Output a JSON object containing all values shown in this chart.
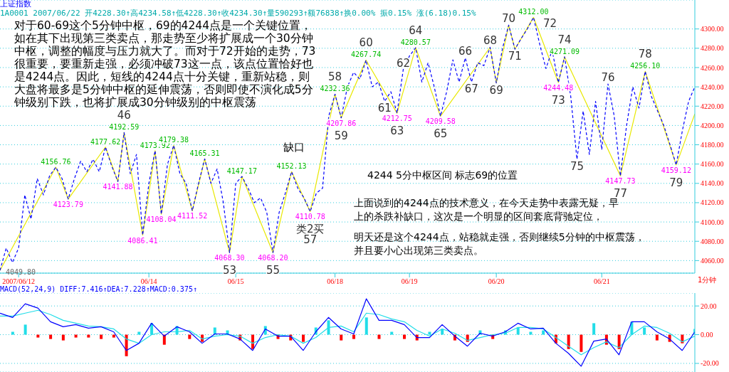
{
  "chart_data": [
    {
      "type": "line",
      "title": "上证指数",
      "subtitle": "1A0001 2007/06/22 开4228.30↑高4234.58↑低4228.30↑收4234.30↑量590293↑额76838↑换0.00% 振0.15% 涨(6.18)0.15%",
      "xlabel": "1分钟",
      "categories": [
        null,
        null,
        null,
        "2007/06/12",
        null,
        null,
        null,
        null,
        null,
        null,
        null,
        null,
        null,
        null,
        null,
        null,
        null,
        null,
        null,
        null,
        null,
        null,
        null,
        null,
        "06/14",
        null,
        null,
        null,
        null,
        null,
        null,
        null,
        null,
        null,
        null,
        null,
        null,
        null,
        "06/15",
        null,
        null,
        null,
        null,
        null,
        null,
        null,
        null,
        null,
        null,
        null,
        null,
        null,
        null,
        null,
        "06/18",
        null,
        null,
        null,
        null,
        null,
        null,
        null,
        null,
        null,
        null,
        null,
        "06/19",
        null,
        null,
        null,
        null,
        null,
        null,
        null,
        null,
        null,
        null,
        null,
        null,
        null,
        "06/20",
        null,
        null,
        null,
        null,
        null,
        null,
        null,
        null,
        null,
        null,
        null,
        null,
        null,
        null,
        null,
        null,
        "06/21",
        null,
        null,
        null,
        null,
        null,
        null,
        null,
        null,
        null,
        null,
        null,
        null,
        null,
        null,
        null
      ],
      "ylim": [
        4047,
        4330
      ],
      "yticks": [
        {
          "value": 4060,
          "label": "4060.00"
        },
        {
          "value": 4080,
          "label": "4080.00"
        },
        {
          "value": 4100,
          "label": "4100.00"
        },
        {
          "value": 4120,
          "label": "4120.00"
        },
        {
          "value": 4140,
          "label": "4140.00"
        },
        {
          "value": 4160,
          "label": "4160.00"
        },
        {
          "value": 4180,
          "label": "4180.00"
        },
        {
          "value": 4200,
          "label": "4200.00"
        },
        {
          "value": 4220,
          "label": "4220.00"
        },
        {
          "value": 4240,
          "label": "4240.00"
        },
        {
          "value": 4260,
          "label": "4260.00"
        },
        {
          "value": 4280,
          "label": "4280.00"
        },
        {
          "value": 4300,
          "label": "4300.00"
        }
      ],
      "grid": "y",
      "series": [
        {
          "color": "#0000ff",
          "line_style": "dashed",
          "values": [
            4049.8,
            4073,
            4058,
            4073,
            4128,
            4103,
            4145,
            4128,
            4148,
            4156.76,
            4145,
            4123.79,
            4145,
            4163,
            4152,
            4165,
            4152,
            4177.62,
            4158,
            4141.88,
            4192.59,
            4150,
            4170,
            4086.41,
            4140,
            4173.92,
            4108.04,
            4160,
            4179.38,
            4150,
            4140,
            4111.52,
            4140,
            4165.31,
            4140,
            4155,
            4120,
            4068.3,
            4140,
            4147.17,
            4135,
            4120,
            4125,
            4110,
            4068.2,
            4110,
            4130,
            4152.13,
            4135,
            4125,
            4110.78,
            4130,
            4135,
            4210,
            4232.36,
            4207.86,
            4240,
            4255,
            4248,
            4267.74,
            4240,
            4245,
            4225,
            4235,
            4212.75,
            4258,
            4272,
            4280.57,
            4245,
            4265,
            4240,
            4209.58,
            4235,
            4268,
            4245,
            4270,
            4245,
            4265,
            4262,
            4281,
            4244,
            4280,
            4304,
            4279,
            4290,
            4300,
            4312.0,
            4284,
            4259,
            4278,
            4244.48,
            4271.09,
            4230,
            4165,
            4215,
            4170,
            4225,
            4175,
            4243,
            4210,
            4147.73,
            4200,
            4240,
            4218,
            4256.1,
            4230,
            4215,
            4200,
            4180,
            4159.12,
            4195,
            4225,
            4240
          ]
        },
        {
          "color": "#e8e800",
          "line_style": "solid",
          "values": [
            4049.8,
            null,
            null,
            null,
            null,
            null,
            null,
            null,
            null,
            4156.76,
            null,
            4123.79,
            null,
            null,
            null,
            null,
            null,
            4177.62,
            null,
            4141.88,
            4192.59,
            null,
            null,
            4086.41,
            null,
            4173.92,
            4108.04,
            null,
            4179.38,
            null,
            null,
            4111.52,
            null,
            4165.31,
            null,
            null,
            null,
            4068.3,
            null,
            4147.17,
            null,
            null,
            null,
            null,
            4068.2,
            null,
            null,
            4152.13,
            null,
            null,
            4110.78,
            null,
            null,
            null,
            4232.36,
            4207.86,
            null,
            null,
            null,
            4267.74,
            null,
            null,
            null,
            null,
            4212.75,
            null,
            null,
            4280.57,
            null,
            null,
            null,
            4209.58,
            null,
            null,
            null,
            null,
            null,
            null,
            null,
            4281,
            4244,
            null,
            4304,
            4279,
            null,
            null,
            4312.0,
            null,
            null,
            null,
            4244.48,
            4271.09,
            null,
            null,
            null,
            null,
            null,
            null,
            null,
            null,
            4147.73,
            null,
            null,
            null,
            4256.1,
            null,
            null,
            null,
            null,
            4159.12,
            null,
            null,
            4212
          ]
        }
      ],
      "annotations": [
        "对于60-69这个5分钟中枢，69的4244点是一个关键位置，如在其下出现第三类卖点，那走势至少将扩展成一个30分钟中枢，调整的幅度与压力就大了。而对于72开始的走势，73很重要，要重新走强，必须冲破73这一点，该点位置恰好也是4244点。因此，短线的4244点十分关键，重新站稳，则大盘将最多是5分钟中枢的延伸震荡，否则即使不演化成5分钟级别下跌，也将扩展成30分钟级别的中枢震荡",
        "缺口",
        "4244 5分中枢区间 标志69的位置",
        "上面说到的4244点的技术意义，在今天走势中表露无疑，早上的杀跌补缺口，这次是一个明显的区间套底背驰定位，",
        "明天还是这个4244点，站稳就走强，否则继续5分钟的中枢震荡，并且要小心出现第三类卖点。",
        "4049.80",
        "72",
        {
          "text": "4156.76",
          "y": 4156.76
        },
        {
          "text": "4123.79",
          "y": 4123.79
        },
        {
          "text": "4177.62",
          "y": 4177.62
        },
        {
          "text": "4141.88",
          "y": 4141.88
        },
        {
          "text": "4192.59",
          "y": 4192.59
        },
        {
          "text": "46",
          "y": 4192.59
        },
        {
          "text": "4086.41",
          "y": 4086.41
        },
        {
          "text": "4173.92",
          "y": 4173.92
        },
        {
          "text": "4108.04",
          "y": 4108.04
        },
        {
          "text": "4179.38",
          "y": 4179.38
        },
        {
          "text": "4111.52",
          "y": 4111.52
        },
        {
          "text": "4165.31",
          "y": 4165.31
        },
        {
          "text": "4068.30",
          "y": 4068.3
        },
        {
          "text": "53",
          "y": 4068.3
        },
        {
          "text": "4147.17",
          "y": 4147.17
        },
        {
          "text": "4068.20",
          "y": 4068.2
        },
        {
          "text": "55",
          "y": 4068.2
        },
        {
          "text": "4152.13",
          "y": 4152.13
        },
        {
          "text": "4110.78",
          "y": 4110.78
        },
        {
          "text": "类2买",
          "y": 4110.78
        },
        {
          "text": "57",
          "y": 4110.78
        },
        {
          "text": "4232.36",
          "y": 4232.36
        },
        {
          "text": "58",
          "y": 4232.36
        },
        {
          "text": "4207.86",
          "y": 4207.86
        },
        {
          "text": "59",
          "y": 4207.86
        },
        {
          "text": "4267.74",
          "y": 4267.74
        },
        {
          "text": "60",
          "y": 4267.74
        },
        {
          "text": "61",
          "y": 4225
        },
        {
          "text": "4212.75",
          "y": 4212.75
        },
        {
          "text": "63",
          "y": 4212.75
        },
        {
          "text": "62",
          "y": 4258
        },
        {
          "text": "4280.57",
          "y": 4280.57
        },
        {
          "text": "64",
          "y": 4280.57
        },
        {
          "text": "4209.58",
          "y": 4209.58
        },
        {
          "text": "65",
          "y": 4209.58
        },
        {
          "text": "66",
          "y": 4270
        },
        {
          "text": "67",
          "y": 4245
        },
        {
          "text": "68",
          "y": 4281
        },
        {
          "text": "69",
          "y": 4244
        },
        {
          "text": "70",
          "y": 4304
        },
        {
          "text": "71",
          "y": 4279
        },
        {
          "text": "4312.00",
          "y": 4312.0
        },
        {
          "text": "4244.48",
          "y": 4244.48
        },
        {
          "text": "73",
          "y": 4244.48
        },
        {
          "text": "4271.09",
          "y": 4271.09
        },
        {
          "text": "74",
          "y": 4271.09
        },
        {
          "text": "75",
          "y": 4165
        },
        {
          "text": "76",
          "y": 4243
        },
        {
          "text": "4147.73",
          "y": 4147.73
        },
        {
          "text": "77",
          "y": 4147.73
        },
        {
          "text": "4256.10",
          "y": 4256.1
        },
        {
          "text": "78",
          "y": 4256.1
        },
        {
          "text": "4159.12",
          "y": 4159.12
        },
        {
          "text": "79",
          "y": 4159.12
        }
      ]
    },
    {
      "type": "line",
      "title": "MACD(52,24,9) DIFF:7.416↑DEA:7.228↑MACD:0.375↑",
      "categories": [
        null,
        null,
        null,
        null,
        null,
        null,
        null,
        null,
        null,
        null,
        null,
        null,
        null,
        null,
        null,
        null,
        null,
        null,
        null,
        null,
        null,
        null,
        null,
        null,
        null,
        null,
        null,
        null,
        null,
        null,
        null,
        null,
        null,
        null,
        null,
        null,
        null,
        null,
        null,
        null,
        null,
        null,
        null,
        null,
        null,
        null,
        null,
        null,
        null,
        null,
        null,
        null,
        null,
        null,
        null,
        null
      ],
      "ylim": [
        -26,
        29
      ],
      "yticks": [
        {
          "value": -20,
          "label": "-20.00"
        },
        {
          "value": 0,
          "label": "0.00"
        },
        {
          "value": 20,
          "label": "20.00"
        }
      ],
      "grid": "y",
      "tick_labels": "y",
      "series": [
        {
          "type": "bar",
          "colors": [
            "#22dde8",
            "#22dde8",
            "#22dde8",
            "#ff0000",
            "#ff0000",
            "#ff0000",
            "#ff0000",
            "#ff0000",
            "#ff0000",
            "#ff0000",
            "#ff0000",
            "#22dde8",
            "#22dde8",
            "#ff0000",
            "#22dde8",
            "#ff0000",
            "#ff0000",
            "#22dde8",
            "#22dde8",
            "#ff0000",
            "#ff0000",
            "#22dde8",
            "#ff0000",
            "#ff0000",
            "#ff0000",
            "#22dde8",
            "#22dde8",
            "#ff0000",
            "#ff0000",
            "#22dde8",
            "#ff0000",
            "#22dde8",
            "#ff0000",
            "#ff0000",
            "#22dde8",
            "#22dde8",
            "#ff0000",
            "#ff0000",
            "#22dde8",
            "#ff0000",
            "#22dde8",
            "#22dde8",
            "#22dde8",
            "#22dde8",
            "#ff0000",
            "#ff0000",
            "#ff0000",
            "#22dde8",
            "#ff0000",
            "#ff0000",
            "#22dde8",
            "#22dde8",
            "#ff0000",
            "#ff0000",
            "#ff0000",
            "#22dde8"
          ],
          "values": [
            0,
            2,
            7,
            -2,
            -3,
            -4,
            -2,
            -2,
            -3,
            -2,
            -15,
            2,
            8,
            -7,
            6,
            -3,
            -5,
            5,
            3,
            -4,
            -10,
            6,
            -3,
            -4,
            -5,
            5,
            10,
            -4,
            -3,
            12,
            -3,
            2,
            -3,
            -4,
            2,
            4,
            -4,
            -5,
            3,
            -3,
            3,
            5,
            2,
            3,
            -6,
            -10,
            -12,
            8,
            -7,
            -10,
            9,
            5,
            -4,
            -5,
            -6,
            4
          ]
        },
        {
          "color": "#0000ff",
          "values": [
            15,
            12,
            21.5,
            18.5,
            9,
            5.5,
            7,
            4.5,
            5.5,
            2,
            -11,
            -6,
            8,
            -1,
            5.5,
            2,
            -6,
            0.5,
            0.5,
            -3,
            -11,
            4,
            -1,
            -1,
            -11,
            2,
            12,
            4,
            0.5,
            25,
            10,
            10,
            7,
            -2,
            -2,
            7,
            -1,
            -8,
            1,
            -1,
            2,
            8,
            4,
            4.5,
            -6,
            -13,
            -22,
            -4.5,
            -3,
            -14,
            9,
            9,
            2,
            -3,
            -11,
            2
          ]
        },
        {
          "color": "#22dde8",
          "values": [
            13,
            13,
            15,
            17,
            14,
            10,
            8,
            6,
            5.5,
            4,
            -3,
            -6,
            0,
            2,
            2,
            3,
            -3,
            -1,
            0,
            -1,
            -6,
            -2,
            0,
            -1,
            -6,
            -2,
            5,
            6,
            2,
            15,
            14,
            11,
            9,
            3,
            -1,
            4,
            1,
            -4,
            -2,
            0,
            1,
            5,
            5,
            4,
            -2,
            -8,
            -14,
            -9,
            -5,
            -9,
            0,
            6,
            5,
            1,
            -5,
            -1
          ]
        }
      ]
    }
  ]
}
